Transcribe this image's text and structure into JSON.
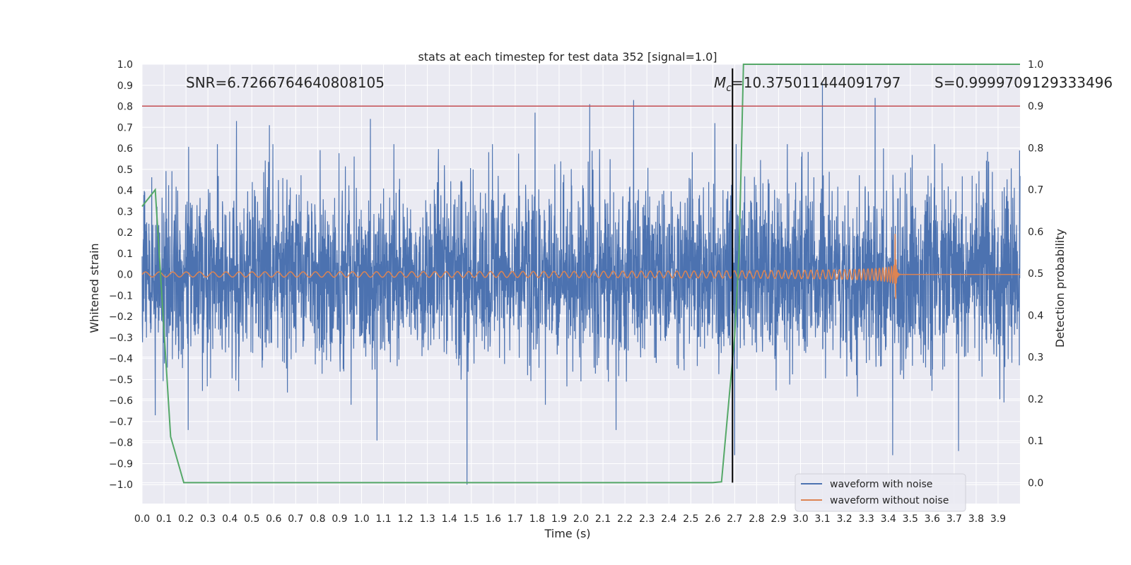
{
  "chart_data": {
    "type": "line",
    "title": "stats at each timestep for test data 352 [signal=1.0]",
    "xlabel": "Time (s)",
    "ylabel": "Whitened strain",
    "y2label": "Detection probability",
    "xlim": [
      0.0,
      4.0
    ],
    "ylim": [
      -1.09,
      1.0
    ],
    "y2lim": [
      -0.05,
      1.0
    ],
    "x_ticks": [
      "0.0",
      "0.1",
      "0.2",
      "0.3",
      "0.4",
      "0.5",
      "0.6",
      "0.7",
      "0.8",
      "0.9",
      "1.0",
      "1.1",
      "1.2",
      "1.3",
      "1.4",
      "1.5",
      "1.6",
      "1.7",
      "1.8",
      "1.9",
      "2.0",
      "2.1",
      "2.2",
      "2.3",
      "2.4",
      "2.5",
      "2.6",
      "2.7",
      "2.8",
      "2.9",
      "3.0",
      "3.1",
      "3.2",
      "3.3",
      "3.4",
      "3.5",
      "3.6",
      "3.7",
      "3.8",
      "3.9"
    ],
    "y_ticks": [
      "1.0",
      "0.9",
      "0.8",
      "0.7",
      "0.6",
      "0.5",
      "0.4",
      "0.3",
      "0.2",
      "0.1",
      "0.0",
      "−0.1",
      "−0.2",
      "−0.3",
      "−0.4",
      "−0.5",
      "−0.6",
      "−0.7",
      "−0.8",
      "−0.9",
      "−1.0"
    ],
    "y2_ticks": [
      "1.0",
      "0.9",
      "0.8",
      "0.7",
      "0.6",
      "0.5",
      "0.4",
      "0.3",
      "0.2",
      "0.1",
      "0.0"
    ],
    "annotations": {
      "snr": "SNR=6.7266764640808105",
      "mc_prefix": "M",
      "mc_sub": "c",
      "mc_value": "=10.375011444091797",
      "s": "S=0.9999709129333496"
    },
    "series": [
      {
        "name": "waveform with noise",
        "color": "#4c72b0",
        "envelope": {
          "typical_amplitude": 0.38
        },
        "notable_spikes": [
          {
            "x": 0.06,
            "y": -0.67
          },
          {
            "x": 0.21,
            "y": -0.74
          },
          {
            "x": 0.43,
            "y": 0.73
          },
          {
            "x": 0.58,
            "y": 0.71
          },
          {
            "x": 1.04,
            "y": 0.74
          },
          {
            "x": 1.07,
            "y": -0.79
          },
          {
            "x": 1.48,
            "y": -1.0
          },
          {
            "x": 1.79,
            "y": 0.77
          },
          {
            "x": 2.04,
            "y": 0.81
          },
          {
            "x": 2.16,
            "y": -0.74
          },
          {
            "x": 2.24,
            "y": 0.83
          },
          {
            "x": 2.61,
            "y": 0.72
          },
          {
            "x": 2.7,
            "y": -0.86
          },
          {
            "x": 3.1,
            "y": 0.91
          },
          {
            "x": 3.34,
            "y": 0.84
          },
          {
            "x": 3.42,
            "y": -0.86
          },
          {
            "x": 3.72,
            "y": -0.84
          }
        ]
      },
      {
        "name": "waveform without noise",
        "color": "#dd8452",
        "chirp": {
          "start_x": 0.0,
          "merger_x": 3.43,
          "start_amplitude": 0.012,
          "peak_amplitude": 0.25
        }
      },
      {
        "name": "",
        "color": "#55a868",
        "axis": "right",
        "x": [
          0.0,
          0.06,
          0.13,
          0.19,
          1.0,
          2.0,
          2.3,
          2.6,
          2.64,
          2.7,
          2.72,
          2.74,
          3.0,
          3.5,
          4.0
        ],
        "values": [
          0.66,
          0.7,
          0.11,
          0.0,
          0.0,
          0.0,
          0.0,
          0.0,
          0.002,
          0.35,
          0.55,
          1.0,
          1.0,
          1.0,
          1.0
        ]
      }
    ],
    "reference_lines": {
      "threshold_y2": 0.9,
      "threshold_color": "#c44e52",
      "vertical_x": 2.69,
      "vertical_y2_range": [
        0.0,
        0.99
      ],
      "vertical_color": "#000000"
    },
    "grid": true,
    "background": "#eaeaf2",
    "legend_location": "lower right"
  }
}
